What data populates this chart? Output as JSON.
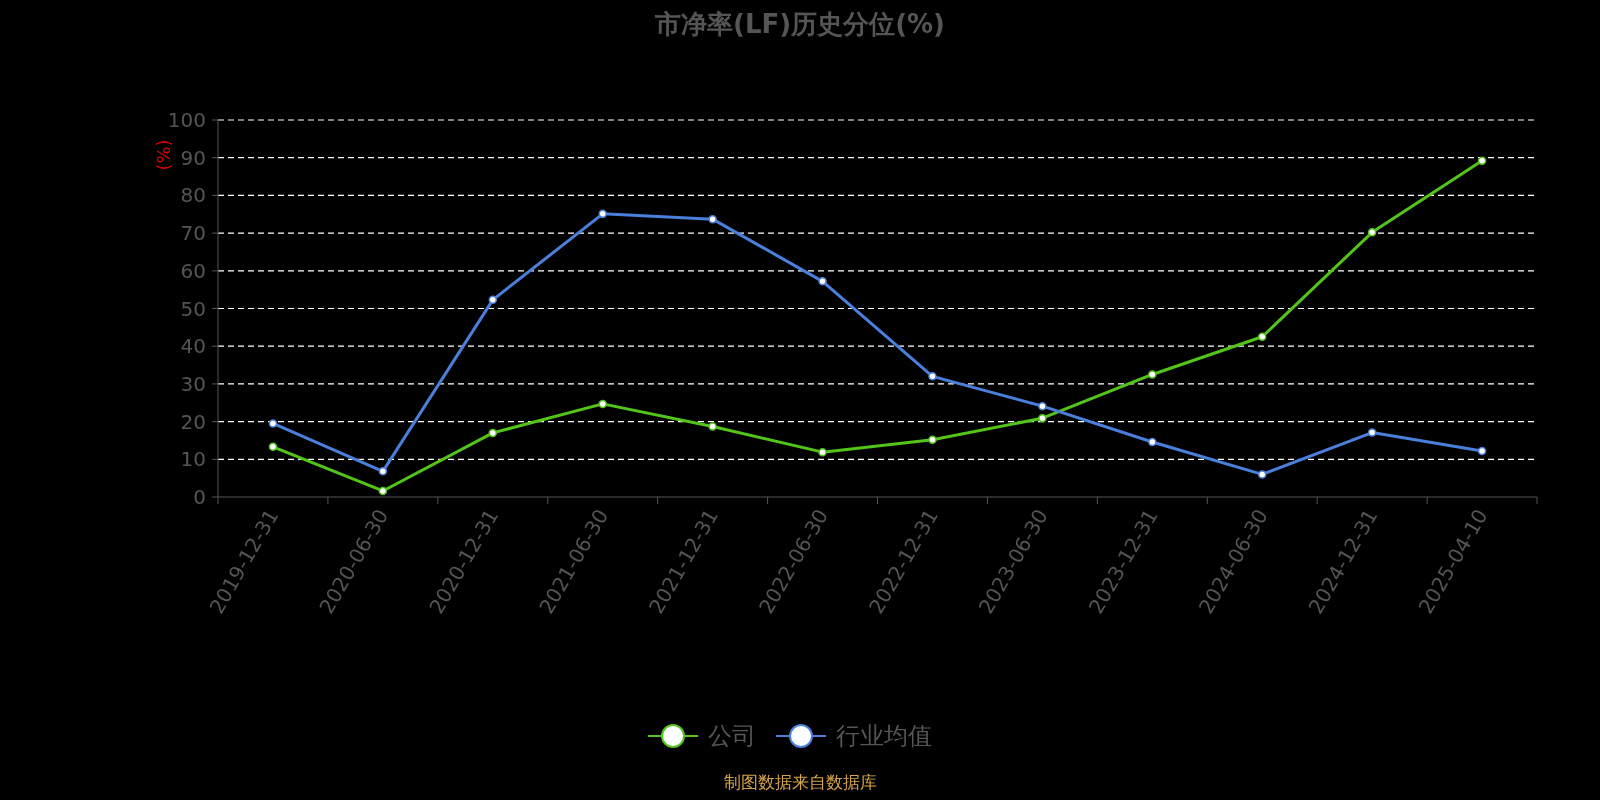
{
  "chart_data": {
    "type": "line",
    "title": "市净率(LF)历史分位(%)",
    "ylabel": "(%)",
    "categories": [
      "2019-12-31",
      "2020-06-30",
      "2020-12-31",
      "2021-06-30",
      "2021-12-31",
      "2022-06-30",
      "2022-12-31",
      "2023-06-30",
      "2023-12-31",
      "2024-06-30",
      "2024-12-31",
      "2025-04-10"
    ],
    "series": [
      {
        "name": "公司",
        "color": "#52c41a",
        "values": [
          13.3,
          1.6,
          17,
          24.7,
          18.7,
          11.9,
          15.2,
          20.9,
          32.5,
          42.5,
          70.2,
          89.2
        ]
      },
      {
        "name": "行业均值",
        "color": "#4a7fdc",
        "values": [
          19.5,
          6.8,
          52.3,
          75.1,
          73.7,
          57.2,
          32,
          24.1,
          14.6,
          6,
          17.1,
          12.2
        ]
      }
    ],
    "ylim": [
      0,
      100
    ],
    "yticks": [
      0,
      10,
      20,
      30,
      40,
      50,
      60,
      70,
      80,
      90,
      100
    ],
    "grid": "y",
    "legend": "bottom",
    "marker": "circle",
    "annotations": [
      "制图数据来自数据库"
    ]
  }
}
